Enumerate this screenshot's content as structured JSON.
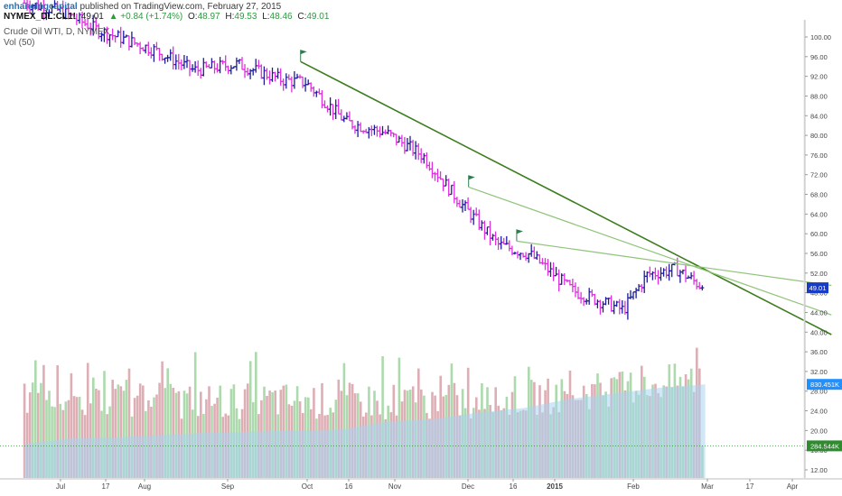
{
  "header": {
    "author": "enhancingcapital",
    "published": "published on TradingView.com, February 27, 2015",
    "symbol": "NYMEX_DL:CL1!",
    "last": "49.01",
    "change": "▲ +0.84 (+1.74%)",
    "open_label": "O:",
    "open": "48.97",
    "high_label": "H:",
    "high": "49.53",
    "low_label": "L:",
    "low": "48.46",
    "close_label": "C:",
    "close": "49.01",
    "instrument": "Crude Oil WTI, D, NYMEX",
    "volume_study": "Vol (50)"
  },
  "colors": {
    "up_bar": "#1c1c9c",
    "down_bar": "#e02ee0",
    "trendline_dark": "#3d7d1e",
    "trendline_light": "#8fc47a",
    "flag": "#2e7d4f",
    "vol_down": "#d8a0a8",
    "vol_up": "#9fd49f",
    "vol_ma": "#a8d4f0",
    "price_tag": "#1a3cc4",
    "vol_tag": "#1e90ff",
    "vol_tag2": "#2e8b2e"
  },
  "chart_data": {
    "type": "ohlc",
    "title": "Crude Oil WTI, D, NYMEX",
    "x_ticks": [
      "Jul",
      "17",
      "Aug",
      "Sep",
      "Oct",
      "16",
      "Nov",
      "Dec",
      "16",
      "2015",
      "Feb",
      "Mar",
      "17",
      "Apr"
    ],
    "y_ticks": [
      "100.00",
      "96.00",
      "92.00",
      "88.00",
      "84.00",
      "80.00",
      "76.00",
      "72.00",
      "68.00",
      "64.00",
      "60.00",
      "56.00",
      "52.00",
      "48.00",
      "44.00",
      "40.00",
      "36.00",
      "32.00",
      "28.00",
      "24.00",
      "20.00",
      "16.00",
      "12.00"
    ],
    "price_label": "49.01",
    "volume_labels": [
      "830.451K",
      "284.544K"
    ],
    "close_series": [
      {
        "x": "2014-07-01",
        "y": 105.3
      },
      {
        "x": "2014-07-15",
        "y": 101.4
      },
      {
        "x": "2014-08-05",
        "y": 97.4
      },
      {
        "x": "2014-08-20",
        "y": 93.2
      },
      {
        "x": "2014-09-05",
        "y": 94.5
      },
      {
        "x": "2014-09-22",
        "y": 91.3
      },
      {
        "x": "2014-10-01",
        "y": 90.7
      },
      {
        "x": "2014-10-16",
        "y": 82.7
      },
      {
        "x": "2014-10-31",
        "y": 80.5
      },
      {
        "x": "2014-11-14",
        "y": 75.8
      },
      {
        "x": "2014-11-28",
        "y": 66.2
      },
      {
        "x": "2014-12-12",
        "y": 57.8
      },
      {
        "x": "2014-12-24",
        "y": 55.8
      },
      {
        "x": "2015-01-09",
        "y": 48.4
      },
      {
        "x": "2015-01-28",
        "y": 44.5
      },
      {
        "x": "2015-02-06",
        "y": 51.7
      },
      {
        "x": "2015-02-17",
        "y": 52.8
      },
      {
        "x": "2015-02-27",
        "y": 49.0
      }
    ],
    "trendlines": [
      {
        "from": {
          "x": "2014-09-29",
          "y": 95.0
        },
        "to": {
          "x": "2015-04-16",
          "y": 39.5
        }
      },
      {
        "from": {
          "x": "2014-12-01",
          "y": 69.5
        },
        "to": {
          "x": "2015-04-16",
          "y": 43.5
        }
      },
      {
        "from": {
          "x": "2014-12-19",
          "y": 58.5
        },
        "to": {
          "x": "2015-04-16",
          "y": 49.5
        }
      }
    ],
    "volume_ma_k": [
      300,
      350,
      360,
      380,
      400,
      410,
      420,
      430,
      500,
      520,
      580,
      620,
      700,
      750,
      800,
      830
    ],
    "volume_latest_k": 284.544,
    "volume_ma_latest_k": 830.451,
    "ylim": [
      12,
      104
    ],
    "grid": false
  }
}
